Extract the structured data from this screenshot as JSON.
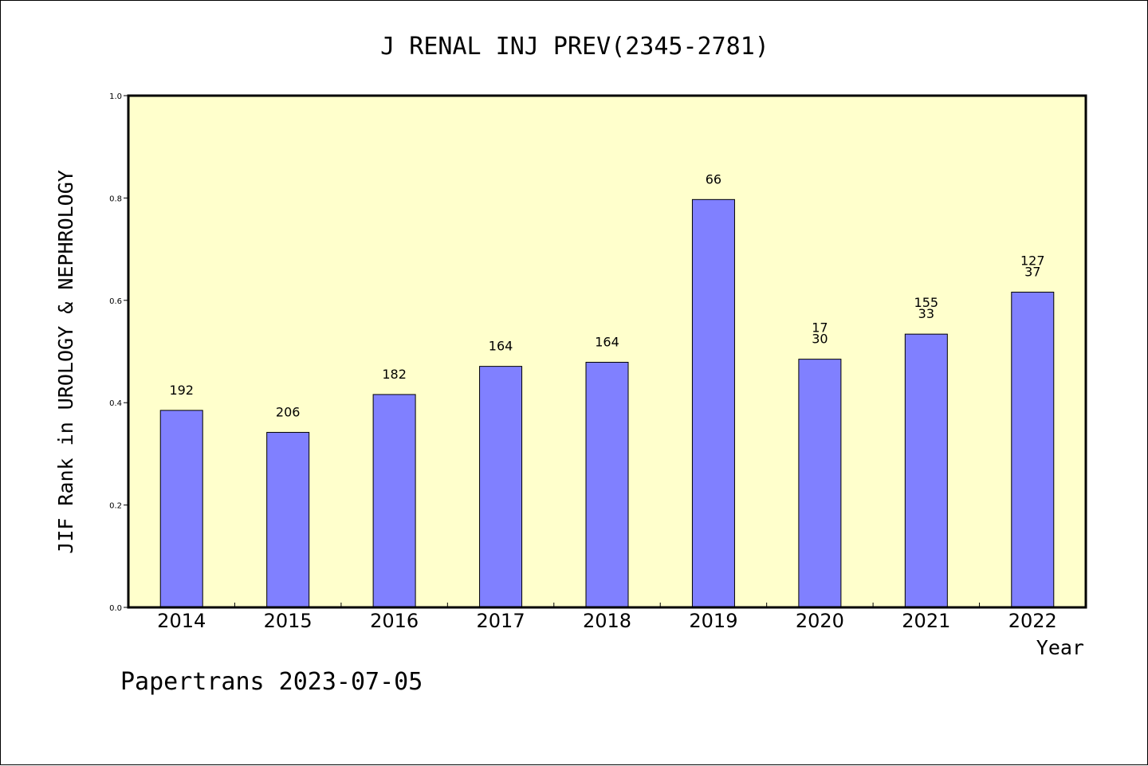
{
  "chart_data": {
    "type": "bar",
    "title": "J RENAL INJ PREV(2345-2781)",
    "xlabel": "Year",
    "ylabel": "JIF Rank in UROLOGY & NEPHROLOGY",
    "ylim": [
      0.0,
      1.0
    ],
    "yticks": [
      "0.0",
      "0.2",
      "0.4",
      "0.6",
      "0.8",
      "1.0"
    ],
    "grid": false,
    "colors": {
      "plot_background": "#ffffcc",
      "bar_fill": "#8080ff",
      "bar_stroke": "#000000"
    },
    "categories": [
      "2014",
      "2015",
      "2016",
      "2017",
      "2018",
      "2019",
      "2020",
      "2021",
      "2022"
    ],
    "values": [
      0.385,
      0.342,
      0.416,
      0.471,
      0.479,
      0.797,
      0.485,
      0.534,
      0.616
    ],
    "data_labels": [
      [
        "192"
      ],
      [
        "206"
      ],
      [
        "182"
      ],
      [
        "164"
      ],
      [
        "164"
      ],
      [
        "66"
      ],
      [
        "17",
        "30"
      ],
      [
        "155",
        "33"
      ],
      [
        "127",
        "37"
      ]
    ]
  },
  "footer": {
    "text": "Papertrans 2023-07-05"
  }
}
